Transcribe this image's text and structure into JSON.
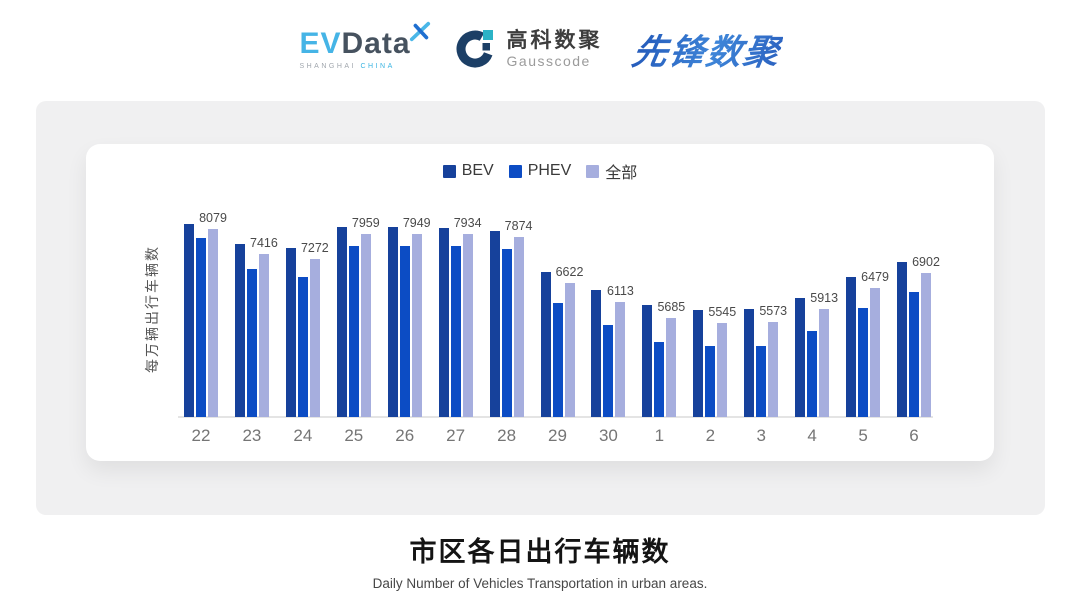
{
  "header": {
    "evdata": {
      "ev": "EV",
      "data": "Data",
      "sub_left": "SHANGHAI",
      "sub_right": "CHINA"
    },
    "gausscode": {
      "cn": "高科数聚",
      "en": "Gausscode"
    },
    "pioneer": {
      "text": "先锋数聚"
    }
  },
  "chart_data": {
    "type": "bar",
    "title": "市区各日出行车辆数",
    "subtitle": "Daily Number of Vehicles Transportation in urban areas.",
    "ylabel": "每万辆出行车辆数",
    "xlabel": "",
    "categories": [
      "22",
      "23",
      "24",
      "25",
      "26",
      "27",
      "28",
      "29",
      "30",
      "1",
      "2",
      "3",
      "4",
      "5",
      "6"
    ],
    "series": [
      {
        "name": "BEV",
        "color": "#16419b",
        "values": [
          8220,
          7680,
          7560,
          8130,
          8150,
          8110,
          8040,
          6920,
          6430,
          6040,
          5890,
          5925,
          6225,
          6795,
          7200
        ]
      },
      {
        "name": "PHEV",
        "color": "#0c4cc4",
        "values": [
          7835,
          6990,
          6775,
          7635,
          7625,
          7610,
          7545,
          6090,
          5500,
          5020,
          4910,
          4910,
          5335,
          5935,
          6370
        ]
      },
      {
        "name": "全部",
        "color": "#a6aede",
        "values": [
          8079,
          7416,
          7272,
          7959,
          7949,
          7934,
          7874,
          6622,
          6113,
          5685,
          5545,
          5573,
          5913,
          6479,
          6902
        ]
      }
    ],
    "value_labels": [
      "8079",
      "7416",
      "7272",
      "7959",
      "7949",
      "7934",
      "7874",
      "6622",
      "6113",
      "5685",
      "5545",
      "5573",
      "5913",
      "6479",
      "6902"
    ],
    "labeled_series": "全部",
    "axis": {
      "min": 3000,
      "max": 8400,
      "grid": false,
      "legend_position": "top",
      "baseline_color": "#e4e4e4"
    }
  }
}
